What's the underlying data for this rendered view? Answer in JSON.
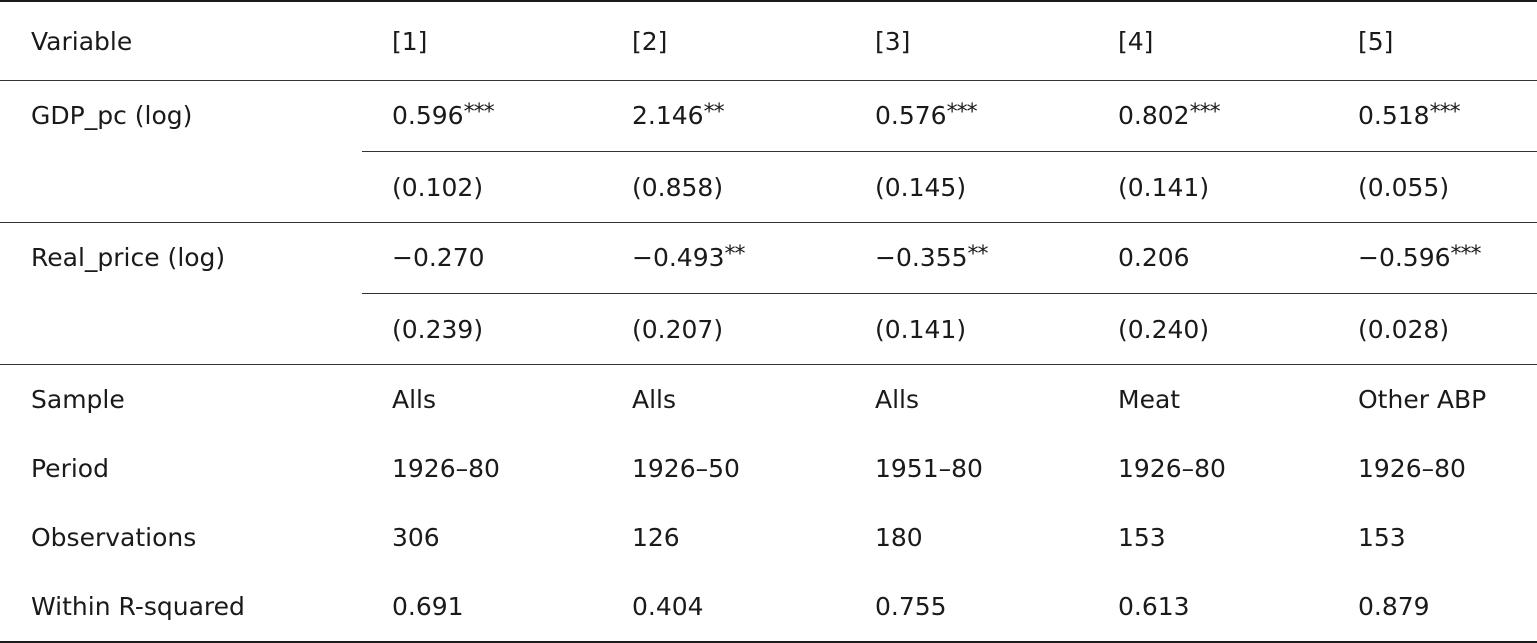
{
  "table": {
    "header": [
      "Variable",
      "[1]",
      "[2]",
      "[3]",
      "[4]",
      "[5]"
    ],
    "gdp": {
      "label": "GDP_pc (log)",
      "coefs": [
        {
          "value": "0.596",
          "stars": "***"
        },
        {
          "value": "2.146",
          "stars": "**"
        },
        {
          "value": "0.576",
          "stars": "***"
        },
        {
          "value": "0.802",
          "stars": "***"
        },
        {
          "value": "0.518",
          "stars": "***"
        }
      ],
      "se": [
        "(0.102)",
        "(0.858)",
        "(0.145)",
        "(0.141)",
        "(0.055)"
      ]
    },
    "price": {
      "label": "Real_price (log)",
      "coefs": [
        {
          "value": "−0.270",
          "stars": ""
        },
        {
          "value": "−0.493",
          "stars": "**"
        },
        {
          "value": "−0.355",
          "stars": "**"
        },
        {
          "value": "0.206",
          "stars": ""
        },
        {
          "value": "−0.596",
          "stars": "***"
        }
      ],
      "se": [
        "(0.239)",
        "(0.207)",
        "(0.141)",
        "(0.240)",
        "(0.028)"
      ]
    },
    "sample": {
      "label": "Sample",
      "values": [
        "Alls",
        "Alls",
        "Alls",
        "Meat",
        "Other ABP"
      ]
    },
    "period": {
      "label": "Period",
      "values": [
        "1926–80",
        "1926–50",
        "1951–80",
        "1926–80",
        "1926–80"
      ]
    },
    "observations": {
      "label": "Observations",
      "values": [
        "306",
        "126",
        "180",
        "153",
        "153"
      ]
    },
    "r_squared": {
      "label": "Within R-squared",
      "values": [
        "0.691",
        "0.404",
        "0.755",
        "0.613",
        "0.879"
      ]
    }
  }
}
